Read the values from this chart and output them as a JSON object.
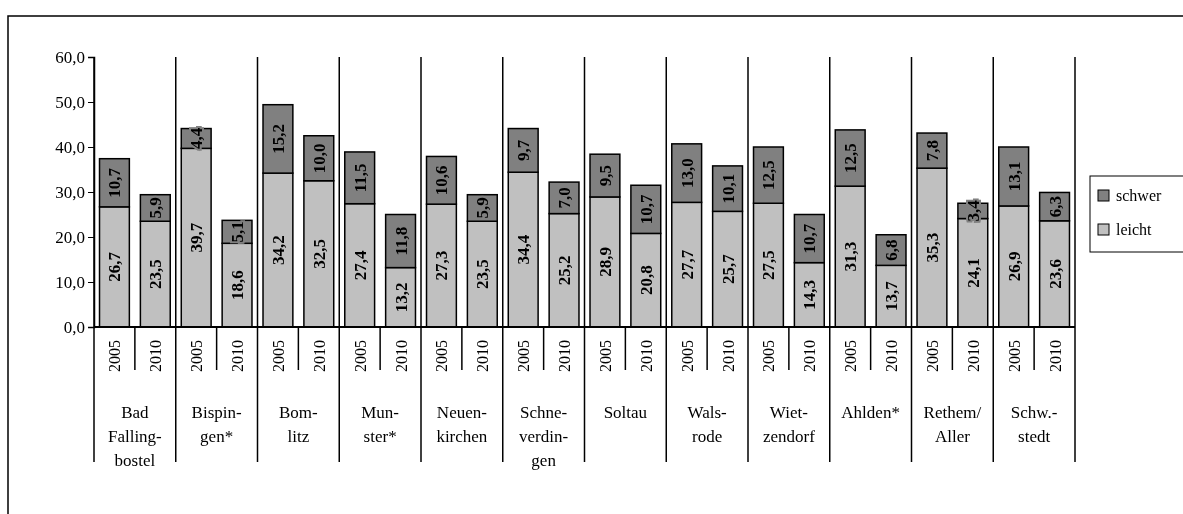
{
  "chart_data": {
    "type": "bar",
    "stacked": true,
    "legend": "right",
    "grid": false,
    "categories": [
      "2005",
      "2010",
      "2005",
      "2010",
      "2005",
      "2010",
      "2005",
      "2010",
      "2005",
      "2010",
      "2005",
      "2010",
      "2005",
      "2010",
      "2005",
      "2010",
      "2005",
      "2010",
      "2005",
      "2010",
      "2005",
      "2010",
      "2005",
      "2010"
    ],
    "series": [
      {
        "name": "leicht",
        "color": "#c0c0c0",
        "values": [
          26.7,
          23.5,
          39.7,
          18.6,
          34.2,
          32.5,
          27.4,
          13.2,
          27.3,
          23.5,
          34.4,
          25.2,
          28.9,
          20.8,
          27.7,
          25.7,
          27.5,
          14.3,
          31.3,
          13.7,
          35.3,
          24.1,
          26.9,
          23.6
        ],
        "value_labels": [
          "26,7",
          "23,5",
          "39,7",
          "18,6",
          "34,2",
          "32,5",
          "27,4",
          "13,2",
          "27,3",
          "23,5",
          "34,4",
          "25,2",
          "28,9",
          "20,8",
          "27,7",
          "25,7",
          "27,5",
          "14,3",
          "31,3",
          "13,7",
          "35,3",
          "24,1",
          "26,9",
          "23,6"
        ]
      },
      {
        "name": "schwer",
        "color": "#808080",
        "values": [
          10.7,
          5.9,
          4.4,
          5.1,
          15.2,
          10.0,
          11.5,
          11.8,
          10.6,
          5.9,
          9.7,
          7.0,
          9.5,
          10.7,
          13.0,
          10.1,
          12.5,
          10.7,
          12.5,
          6.8,
          7.8,
          3.4,
          13.1,
          6.3
        ],
        "value_labels": [
          "10,7",
          "5,9",
          "4,4",
          "5,1",
          "15,2",
          "10,0",
          "11,5",
          "11,8",
          "10,6",
          "5,9",
          "9,7",
          "7,0",
          "9,5",
          "10,7",
          "13,0",
          "10,1",
          "12,5",
          "10,7",
          "12,5",
          "6,8",
          "7,8",
          "3,4",
          "13,1",
          "6,3"
        ]
      }
    ],
    "ylim": [
      0,
      60
    ],
    "yticks": [
      {
        "value": 0,
        "label": "0,0"
      },
      {
        "value": 10,
        "label": "10,0"
      },
      {
        "value": 20,
        "label": "20,0"
      },
      {
        "value": 30,
        "label": "30,0"
      },
      {
        "value": 40,
        "label": "40,0"
      },
      {
        "value": 50,
        "label": "50,0"
      },
      {
        "value": 60,
        "label": "60,0"
      }
    ],
    "annotations": [
      "Bad\nFalling-\nbostel",
      "Bispin-\ngen*",
      "Bom-\nlitz",
      "Mun-\nster*",
      "Neuen-\nkirchen",
      "Schne-\nverdin-\ngen",
      "Soltau",
      "Wals-\nrode",
      "Wiet-\nzendorf",
      "Ahlden*",
      "Rethem/\nAller",
      "Schw.-\nstedt"
    ]
  }
}
